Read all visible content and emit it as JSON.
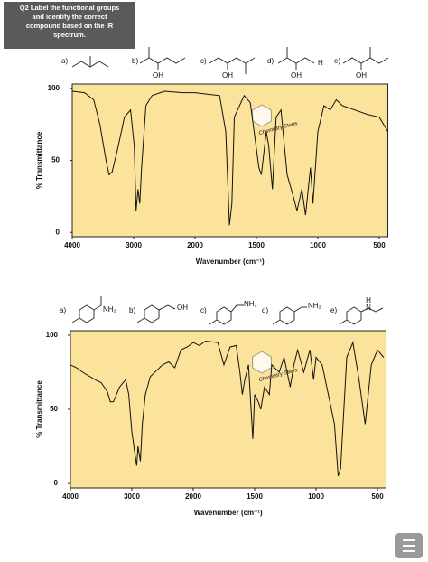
{
  "header": {
    "lines": [
      "Q2 Label the functional groups",
      "and identify the correct",
      "compound based on the IR",
      "spectrum."
    ]
  },
  "options": [
    [
      {
        "label": "a)"
      },
      {
        "label": "b)",
        "groups": [
          "OH"
        ]
      },
      {
        "label": "c)",
        "groups": [
          "OH"
        ]
      },
      {
        "label": "d)",
        "groups": [
          "OH",
          "H"
        ]
      },
      {
        "label": "e)",
        "groups": [
          "OH"
        ]
      }
    ],
    [
      {
        "label": "a)",
        "groups": [
          "NH₂"
        ]
      },
      {
        "label": "b)",
        "groups": [
          "OH"
        ]
      },
      {
        "label": "c)",
        "groups": [
          "NH₂"
        ]
      },
      {
        "label": "d)",
        "groups": [
          "NH₂"
        ]
      },
      {
        "label": "e)",
        "groups": [
          "H",
          "N"
        ]
      }
    ]
  ],
  "chart_data": [
    {
      "type": "line",
      "xlabel": "Wavenumber (cm⁻¹)",
      "ylabel": "% Transmittance",
      "annotation": "Chemistry Steps",
      "color": "#111111",
      "x": [
        4000,
        3800,
        3650,
        3550,
        3450,
        3400,
        3350,
        3250,
        3150,
        3050,
        2990,
        2960,
        2930,
        2900,
        2870,
        2800,
        2700,
        2500,
        2200,
        2000,
        1900,
        1800,
        1750,
        1720,
        1700,
        1680,
        1600,
        1550,
        1480,
        1460,
        1420,
        1400,
        1370,
        1340,
        1300,
        1250,
        1200,
        1170,
        1130,
        1100,
        1060,
        1040,
        1000,
        950,
        900,
        850,
        800,
        700,
        600,
        500,
        430
      ],
      "values": [
        98,
        97,
        92,
        75,
        50,
        40,
        42,
        60,
        80,
        85,
        60,
        15,
        30,
        20,
        45,
        88,
        95,
        98,
        97,
        97,
        96,
        95,
        70,
        5,
        20,
        80,
        95,
        90,
        45,
        40,
        70,
        60,
        30,
        80,
        85,
        40,
        25,
        15,
        30,
        12,
        45,
        20,
        70,
        88,
        85,
        92,
        88,
        85,
        82,
        80,
        70
      ],
      "xlim": [
        4000,
        430
      ],
      "xticks": [
        4000,
        3000,
        2000,
        1500,
        1000,
        500
      ],
      "ylim": [
        -3,
        103
      ],
      "yticks": [
        0,
        50,
        100
      ]
    },
    {
      "type": "line",
      "xlabel": "Wavenumber (cm⁻¹)",
      "ylabel": "% Transmittance",
      "annotation": "Chemistry Steps",
      "color": "#111111",
      "x": [
        4000,
        3900,
        3800,
        3600,
        3500,
        3400,
        3350,
        3300,
        3200,
        3100,
        3050,
        3000,
        2950,
        2920,
        2900,
        2860,
        2830,
        2780,
        2700,
        2600,
        2500,
        2400,
        2300,
        2200,
        2100,
        2000,
        1950,
        1900,
        1800,
        1750,
        1700,
        1650,
        1620,
        1600,
        1580,
        1550,
        1515,
        1500,
        1470,
        1450,
        1420,
        1380,
        1360,
        1300,
        1260,
        1210,
        1180,
        1150,
        1100,
        1050,
        1020,
        1000,
        950,
        900,
        850,
        820,
        800,
        780,
        750,
        700,
        650,
        600,
        550,
        500,
        450
      ],
      "values": [
        80,
        78,
        75,
        70,
        68,
        62,
        55,
        55,
        65,
        70,
        60,
        35,
        20,
        12,
        25,
        15,
        40,
        60,
        72,
        76,
        80,
        82,
        78,
        90,
        92,
        95,
        93,
        96,
        95,
        80,
        92,
        93,
        75,
        60,
        70,
        80,
        30,
        60,
        55,
        50,
        65,
        60,
        80,
        75,
        85,
        65,
        80,
        90,
        75,
        90,
        70,
        85,
        80,
        60,
        40,
        5,
        10,
        40,
        85,
        95,
        70,
        40,
        80,
        90,
        85
      ],
      "xlim": [
        4000,
        430
      ],
      "xticks": [
        4000,
        3000,
        2000,
        1500,
        1000,
        500
      ],
      "ylim": [
        -3,
        103
      ],
      "yticks": [
        0,
        50,
        100
      ]
    }
  ]
}
